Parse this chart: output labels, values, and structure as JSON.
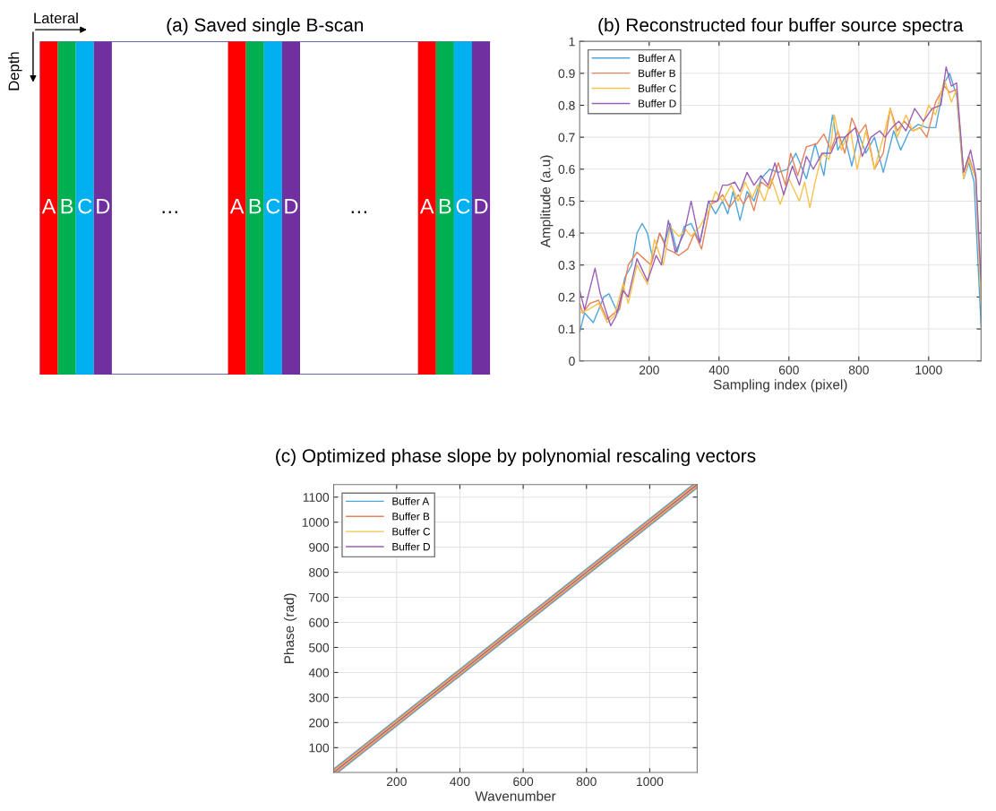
{
  "chart_data": [
    {
      "type": "other",
      "title": "(a) Saved single B-scan",
      "categories": [
        "A",
        "B",
        "C",
        "D",
        "A",
        "B",
        "C",
        "D",
        "A",
        "B",
        "C",
        "D"
      ],
      "colors": [
        "#ff0000",
        "#00b050",
        "#00b0f0",
        "#7030a0",
        "#ff0000",
        "#00b050",
        "#00b0f0",
        "#7030a0",
        "#ff0000",
        "#00b050",
        "#00b0f0",
        "#7030a0"
      ],
      "annotations": [
        "Lateral",
        "Depth",
        "…",
        "…"
      ]
    },
    {
      "type": "line",
      "title": "(b) Reconstructed four buffer source spectra",
      "xlabel": "Sampling index (pixel)",
      "ylabel": "Amplitude (a.u)",
      "xlim": [
        1,
        1150
      ],
      "ylim": [
        0,
        1
      ],
      "xticks": [
        200,
        400,
        600,
        800,
        1000
      ],
      "yticks": [
        0,
        0.1,
        0.2,
        0.3,
        0.4,
        0.5,
        0.6,
        0.7,
        0.8,
        0.9,
        1
      ],
      "grid": true,
      "legend": "top left",
      "marker": "none",
      "line_style": "solid",
      "series": [
        {
          "name": "Buffer A",
          "color": "#4ea6dc",
          "x": [
            1,
            15,
            40,
            70,
            85,
            110,
            130,
            150,
            165,
            180,
            195,
            210,
            230,
            245,
            260,
            280,
            300,
            320,
            345,
            370,
            390,
            410,
            425,
            440,
            460,
            480,
            500,
            520,
            545,
            570,
            595,
            620,
            650,
            675,
            700,
            725,
            740,
            760,
            780,
            800,
            820,
            845,
            870,
            900,
            920,
            945,
            970,
            995,
            1020,
            1045,
            1060,
            1080,
            1100,
            1115,
            1130,
            1150
          ],
          "values": [
            0.09,
            0.15,
            0.12,
            0.2,
            0.21,
            0.15,
            0.26,
            0.3,
            0.4,
            0.43,
            0.4,
            0.32,
            0.4,
            0.37,
            0.43,
            0.34,
            0.42,
            0.43,
            0.37,
            0.5,
            0.46,
            0.5,
            0.46,
            0.53,
            0.44,
            0.53,
            0.5,
            0.57,
            0.6,
            0.59,
            0.6,
            0.65,
            0.57,
            0.68,
            0.58,
            0.77,
            0.66,
            0.7,
            0.61,
            0.71,
            0.65,
            0.7,
            0.59,
            0.72,
            0.66,
            0.72,
            0.74,
            0.73,
            0.73,
            0.87,
            0.9,
            0.83,
            0.57,
            0.62,
            0.56,
            0.11
          ]
        },
        {
          "name": "Buffer B",
          "color": "#e8825a",
          "x": [
            1,
            10,
            30,
            55,
            80,
            100,
            115,
            140,
            165,
            185,
            205,
            230,
            250,
            270,
            285,
            310,
            330,
            350,
            375,
            395,
            410,
            430,
            455,
            470,
            485,
            500,
            520,
            545,
            570,
            590,
            605,
            625,
            650,
            680,
            700,
            720,
            740,
            760,
            780,
            800,
            820,
            845,
            870,
            890,
            910,
            930,
            955,
            975,
            995,
            1020,
            1045,
            1060,
            1080,
            1100,
            1115,
            1135,
            1150
          ],
          "values": [
            0.18,
            0.15,
            0.18,
            0.19,
            0.13,
            0.15,
            0.16,
            0.3,
            0.34,
            0.32,
            0.3,
            0.4,
            0.35,
            0.34,
            0.33,
            0.35,
            0.4,
            0.35,
            0.49,
            0.5,
            0.52,
            0.48,
            0.52,
            0.49,
            0.52,
            0.47,
            0.56,
            0.54,
            0.62,
            0.55,
            0.65,
            0.58,
            0.67,
            0.68,
            0.71,
            0.66,
            0.72,
            0.65,
            0.76,
            0.71,
            0.74,
            0.6,
            0.65,
            0.79,
            0.72,
            0.75,
            0.72,
            0.73,
            0.7,
            0.81,
            0.86,
            0.84,
            0.85,
            0.59,
            0.64,
            0.57,
            0.2
          ]
        },
        {
          "name": "Buffer C",
          "color": "#f5c24a",
          "x": [
            1,
            25,
            55,
            80,
            100,
            125,
            140,
            165,
            195,
            215,
            240,
            260,
            285,
            305,
            320,
            345,
            375,
            390,
            410,
            435,
            455,
            475,
            495,
            510,
            530,
            550,
            575,
            600,
            630,
            645,
            660,
            675,
            695,
            715,
            730,
            750,
            775,
            795,
            820,
            845,
            870,
            890,
            910,
            935,
            955,
            980,
            1000,
            1020,
            1045,
            1065,
            1080,
            1100,
            1115,
            1135,
            1150
          ],
          "values": [
            0.15,
            0.16,
            0.18,
            0.12,
            0.14,
            0.24,
            0.18,
            0.3,
            0.24,
            0.38,
            0.3,
            0.42,
            0.39,
            0.41,
            0.39,
            0.42,
            0.48,
            0.53,
            0.5,
            0.55,
            0.5,
            0.56,
            0.51,
            0.55,
            0.5,
            0.57,
            0.49,
            0.57,
            0.5,
            0.56,
            0.48,
            0.56,
            0.65,
            0.63,
            0.77,
            0.66,
            0.73,
            0.6,
            0.72,
            0.6,
            0.7,
            0.79,
            0.7,
            0.77,
            0.72,
            0.73,
            0.8,
            0.77,
            0.88,
            0.81,
            0.85,
            0.57,
            0.63,
            0.57,
            0.18
          ]
        },
        {
          "name": "Buffer D",
          "color": "#9b5fb5",
          "x": [
            1,
            15,
            45,
            60,
            90,
            105,
            125,
            140,
            165,
            195,
            220,
            235,
            255,
            275,
            300,
            320,
            345,
            370,
            395,
            410,
            425,
            445,
            460,
            480,
            500,
            520,
            540,
            560,
            585,
            610,
            630,
            650,
            670,
            695,
            720,
            740,
            760,
            790,
            810,
            835,
            860,
            875,
            895,
            915,
            935,
            960,
            985,
            1010,
            1035,
            1050,
            1065,
            1080,
            1100,
            1120,
            1135,
            1150
          ],
          "values": [
            0.22,
            0.16,
            0.29,
            0.21,
            0.11,
            0.14,
            0.22,
            0.2,
            0.32,
            0.25,
            0.33,
            0.3,
            0.44,
            0.34,
            0.4,
            0.5,
            0.37,
            0.5,
            0.5,
            0.55,
            0.55,
            0.56,
            0.53,
            0.59,
            0.55,
            0.58,
            0.55,
            0.62,
            0.52,
            0.61,
            0.55,
            0.64,
            0.6,
            0.65,
            0.65,
            0.7,
            0.7,
            0.73,
            0.64,
            0.7,
            0.72,
            0.7,
            0.73,
            0.75,
            0.72,
            0.79,
            0.75,
            0.79,
            0.8,
            0.92,
            0.86,
            0.87,
            0.59,
            0.66,
            0.58,
            0.25
          ]
        }
      ]
    },
    {
      "type": "line",
      "title": "(c) Optimized phase slope by polynomial rescaling vectors",
      "xlabel": "Wavenumber",
      "ylabel": "Phase (rad)",
      "xlim": [
        1,
        1150
      ],
      "ylim": [
        1,
        1150
      ],
      "xticks": [
        200,
        400,
        600,
        800,
        1000
      ],
      "yticks": [
        100,
        200,
        300,
        400,
        500,
        600,
        700,
        800,
        900,
        1000,
        1100
      ],
      "grid": true,
      "legend": "top left",
      "marker": "none",
      "line_style": "solid",
      "series": [
        {
          "name": "Buffer A",
          "color": "#4ea6dc",
          "x": [
            1,
            1150
          ],
          "values": [
            1,
            1150
          ]
        },
        {
          "name": "Buffer B",
          "color": "#e8825a",
          "x": [
            1,
            1150
          ],
          "values": [
            1,
            1150
          ]
        },
        {
          "name": "Buffer C",
          "color": "#f5c24a",
          "x": [
            1,
            1150
          ],
          "values": [
            1,
            1150
          ]
        },
        {
          "name": "Buffer D",
          "color": "#9b5fb5",
          "x": [
            1,
            1150
          ],
          "values": [
            1,
            1150
          ]
        }
      ]
    }
  ]
}
